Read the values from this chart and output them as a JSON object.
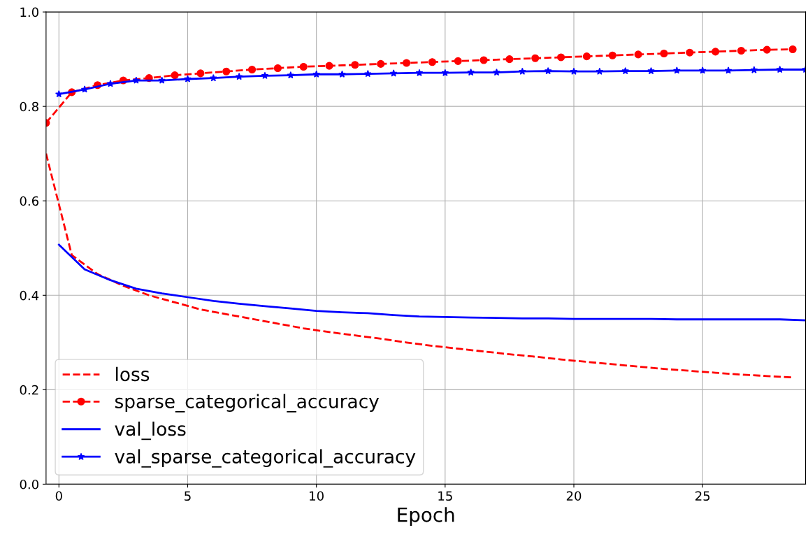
{
  "chart_data": {
    "type": "line",
    "xlabel": "Epoch",
    "xlim": [
      -0.5,
      29
    ],
    "ylim": [
      0,
      1
    ],
    "xticks": [
      0,
      5,
      10,
      15,
      20,
      25
    ],
    "yticks": [
      {
        "value": 0,
        "label": "0.0"
      },
      {
        "value": 0.2,
        "label": "0.2"
      },
      {
        "value": 0.4,
        "label": "0.4"
      },
      {
        "value": 0.6,
        "label": "0.6"
      },
      {
        "value": 0.8,
        "label": "0.8"
      },
      {
        "value": 1,
        "label": "1.0"
      }
    ],
    "grid": true,
    "legend": "bottom left",
    "series": [
      {
        "name": "loss",
        "color": "#ff0000",
        "line_style": "dashed",
        "marker": "none",
        "x": [
          -0.5,
          0.5,
          1.5,
          2.5,
          3.5,
          4.5,
          5.5,
          6.5,
          7.5,
          8.5,
          9.5,
          10.5,
          11.5,
          12.5,
          13.5,
          14.5,
          15.5,
          16.5,
          17.5,
          18.5,
          19.5,
          20.5,
          21.5,
          22.5,
          23.5,
          24.5,
          25.5,
          26.5,
          27.5,
          28.5
        ],
        "values": [
          0.7,
          0.485,
          0.445,
          0.42,
          0.4,
          0.385,
          0.37,
          0.36,
          0.35,
          0.34,
          0.33,
          0.322,
          0.315,
          0.308,
          0.3,
          0.293,
          0.287,
          0.281,
          0.275,
          0.27,
          0.264,
          0.259,
          0.254,
          0.249,
          0.244,
          0.24,
          0.236,
          0.232,
          0.229,
          0.226
        ]
      },
      {
        "name": "sparse_categorical_accuracy",
        "color": "#ff0000",
        "line_style": "dashed",
        "marker": "circle",
        "x": [
          -0.5,
          0.5,
          1.5,
          2.5,
          3.5,
          4.5,
          5.5,
          6.5,
          7.5,
          8.5,
          9.5,
          10.5,
          11.5,
          12.5,
          13.5,
          14.5,
          15.5,
          16.5,
          17.5,
          18.5,
          19.5,
          20.5,
          21.5,
          22.5,
          23.5,
          24.5,
          25.5,
          26.5,
          27.5,
          28.5
        ],
        "values": [
          0.765,
          0.83,
          0.845,
          0.855,
          0.86,
          0.866,
          0.87,
          0.874,
          0.878,
          0.881,
          0.884,
          0.886,
          0.888,
          0.89,
          0.892,
          0.894,
          0.896,
          0.898,
          0.9,
          0.902,
          0.904,
          0.906,
          0.908,
          0.91,
          0.912,
          0.914,
          0.916,
          0.918,
          0.92,
          0.921
        ]
      },
      {
        "name": "val_loss",
        "color": "#0000ff",
        "line_style": "solid",
        "marker": "none",
        "x": [
          0,
          1,
          2,
          3,
          4,
          5,
          6,
          7,
          8,
          9,
          10,
          11,
          12,
          13,
          14,
          15,
          16,
          17,
          18,
          19,
          20,
          21,
          22,
          23,
          24,
          25,
          26,
          27,
          28,
          29
        ],
        "values": [
          0.507,
          0.455,
          0.432,
          0.414,
          0.404,
          0.396,
          0.388,
          0.382,
          0.377,
          0.372,
          0.367,
          0.364,
          0.362,
          0.358,
          0.355,
          0.354,
          0.353,
          0.352,
          0.351,
          0.351,
          0.35,
          0.35,
          0.35,
          0.35,
          0.349,
          0.349,
          0.349,
          0.349,
          0.349,
          0.347
        ]
      },
      {
        "name": "val_sparse_categorical_accuracy",
        "color": "#0000ff",
        "line_style": "solid",
        "marker": "star",
        "x": [
          0,
          1,
          2,
          3,
          4,
          5,
          6,
          7,
          8,
          9,
          10,
          11,
          12,
          13,
          14,
          15,
          16,
          17,
          18,
          19,
          20,
          21,
          22,
          23,
          24,
          25,
          26,
          27,
          28,
          29
        ],
        "values": [
          0.826,
          0.836,
          0.848,
          0.855,
          0.855,
          0.858,
          0.86,
          0.863,
          0.865,
          0.866,
          0.868,
          0.868,
          0.869,
          0.87,
          0.871,
          0.871,
          0.872,
          0.872,
          0.874,
          0.875,
          0.874,
          0.874,
          0.875,
          0.875,
          0.876,
          0.876,
          0.876,
          0.877,
          0.878,
          0.878
        ]
      }
    ]
  }
}
